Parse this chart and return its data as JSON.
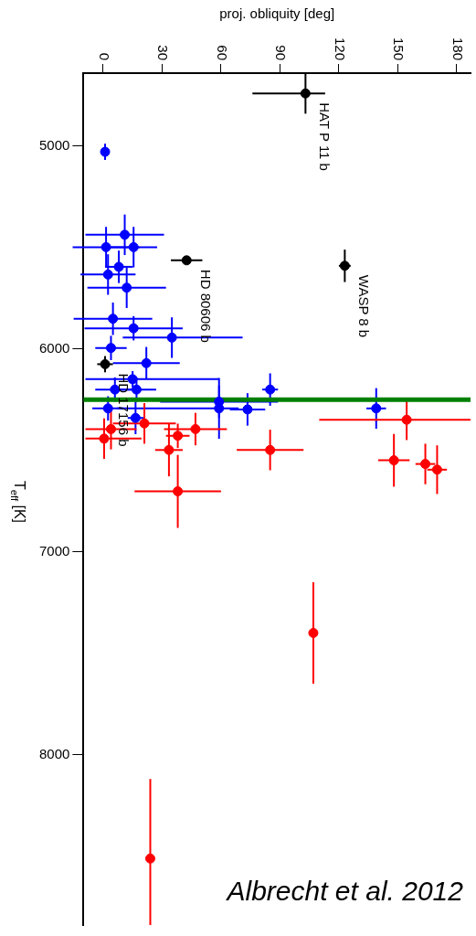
{
  "chart_data": {
    "type": "scatter",
    "xlabel": "proj. obliquity [deg]",
    "ylabel": "T$_{eff}$ [K]",
    "xlim": [
      -10,
      187
    ],
    "xticks": [
      0,
      30,
      60,
      90,
      120,
      150,
      180
    ],
    "ylim": [
      8840,
      4640
    ],
    "yticks": [
      5000,
      6000,
      7000,
      8000
    ],
    "grid": false,
    "legend": false,
    "marker": "circle",
    "series": [
      {
        "color": "#0000ff",
        "x": [
          1,
          11,
          1.5,
          15.5,
          8,
          2.5,
          12,
          5,
          15.5,
          35,
          4,
          22,
          15,
          6,
          17,
          85,
          59,
          59,
          73.5,
          2.5,
          139,
          16.5
        ],
        "values": [
          5028,
          5437,
          5498,
          5498,
          5595,
          5633,
          5698,
          5851,
          5898,
          5944,
          5995,
          6070,
          6149,
          6200,
          6200,
          6200,
          6260,
          6293,
          6298,
          6293,
          6293,
          6340
        ],
        "xerrors": [
          2,
          20,
          17,
          12,
          7,
          14,
          20,
          20,
          25,
          [
            10,
            71
          ],
          8,
          17,
          [
            -9,
            59
          ],
          10,
          10,
          4,
          30,
          [
            7,
            69
          ],
          9,
          8,
          5,
          4
        ],
        "errors": [
          40,
          100,
          100,
          100,
          80,
          100,
          100,
          80,
          60,
          100,
          60,
          80,
          40,
          60,
          60,
          80,
          80,
          150,
          80,
          60,
          100,
          80
        ]
      },
      {
        "color": "#ff0000",
        "x": [
          154.5,
          21,
          4,
          47,
          38,
          0.5,
          33.5,
          85,
          148,
          164,
          170,
          38,
          107,
          24
        ],
        "values": [
          6349,
          6367,
          6395,
          6395,
          6428,
          6442,
          6498,
          6498,
          6549,
          6567,
          6595,
          6702,
          7400,
          8512
        ],
        "xerrors": [
          [
            110,
            187
          ],
          16,
          13,
          16,
          6,
          [
            -9,
            19.5
          ],
          7,
          17,
          8,
          5,
          5,
          22,
          2,
          2
        ],
        "errors": [
          100,
          100,
          100,
          80,
          60,
          100,
          130,
          100,
          130,
          100,
          120,
          180,
          250,
          [
            8120,
            8840
          ]
        ]
      },
      {
        "color": "#000000",
        "x": [
          103,
          42.5,
          123,
          1
        ],
        "values": [
          4740,
          5563,
          5590,
          6075
        ],
        "xerrors": [
          [
            76,
            113
          ],
          8,
          3,
          4
        ],
        "errors": [
          100,
          null,
          80,
          40
        ]
      }
    ],
    "ref_lines": [
      {
        "axis": "y",
        "value": 6250,
        "color": "#008000"
      }
    ],
    "annotations": [
      {
        "text": "HAT P 11 b",
        "x": 103,
        "y": 4740
      },
      {
        "text": "HD 80606 b",
        "x": 42.5,
        "y": 5563
      },
      {
        "text": "WASP 8 b",
        "x": 123,
        "y": 5590
      },
      {
        "text": "HD 17156 b",
        "x": 1,
        "y": 6075
      },
      "Albrecht et al. 2012"
    ]
  }
}
